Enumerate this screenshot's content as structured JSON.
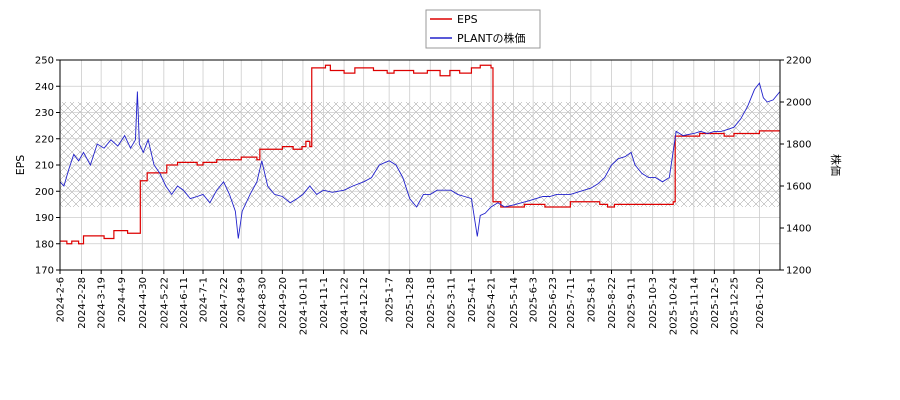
{
  "chart_data": {
    "type": "line",
    "legend": {
      "placement": "top-center",
      "entries": [
        "EPS",
        "PLANTの株価"
      ]
    },
    "colors": {
      "eps": "#dd0000",
      "price": "#2222cc"
    },
    "grid": true,
    "hatch_band": {
      "y2_range": [
        1500,
        2000
      ]
    },
    "y_left": {
      "label": "EPS",
      "range": [
        170,
        250
      ],
      "ticks": [
        "170",
        "180",
        "190",
        "200",
        "210",
        "220",
        "230",
        "240",
        "250"
      ]
    },
    "y_right": {
      "label": "株価",
      "range": [
        1200,
        2200
      ],
      "ticks": [
        "1200",
        "1400",
        "1600",
        "1800",
        "2000",
        "2200"
      ]
    },
    "x": {
      "range": [
        "2024-02-06",
        "2026-02-10"
      ],
      "ticks": [
        "2024-2-6",
        "2024-2-28",
        "2024-3-19",
        "2024-4-9",
        "2024-4-30",
        "2024-5-22",
        "2024-6-11",
        "2024-7-1",
        "2024-7-22",
        "2024-8-9",
        "2024-8-30",
        "2024-9-20",
        "2024-10-11",
        "2024-11-1",
        "2024-11-22",
        "2024-12-12",
        "2025-1-7",
        "2025-1-28",
        "2025-2-18",
        "2025-3-11",
        "2025-4-1",
        "2025-4-21",
        "2025-5-14",
        "2025-6-3",
        "2025-6-23",
        "2025-7-11",
        "2025-8-1",
        "2025-8-22",
        "2025-9-11",
        "2025-10-3",
        "2025-10-24",
        "2025-11-14",
        "2025-12-5",
        "2025-12-25",
        "2026-1-20"
      ]
    },
    "series": [
      {
        "name": "EPS",
        "axis": "left",
        "points": [
          [
            "2024-02-06",
            181
          ],
          [
            "2024-02-13",
            180
          ],
          [
            "2024-02-18",
            181
          ],
          [
            "2024-02-25",
            180
          ],
          [
            "2024-03-01",
            183
          ],
          [
            "2024-03-22",
            182
          ],
          [
            "2024-03-28",
            182
          ],
          [
            "2024-04-01",
            185
          ],
          [
            "2024-04-15",
            184
          ],
          [
            "2024-04-26",
            184
          ],
          [
            "2024-04-28",
            204
          ],
          [
            "2024-05-05",
            207
          ],
          [
            "2024-05-22",
            207
          ],
          [
            "2024-05-25",
            210
          ],
          [
            "2024-06-05",
            211
          ],
          [
            "2024-06-15",
            211
          ],
          [
            "2024-06-25",
            210
          ],
          [
            "2024-07-01",
            211
          ],
          [
            "2024-07-15",
            212
          ],
          [
            "2024-08-01",
            212
          ],
          [
            "2024-08-09",
            213
          ],
          [
            "2024-08-25",
            212
          ],
          [
            "2024-08-28",
            216
          ],
          [
            "2024-09-10",
            216
          ],
          [
            "2024-09-20",
            217
          ],
          [
            "2024-10-01",
            216
          ],
          [
            "2024-10-10",
            217
          ],
          [
            "2024-10-14",
            219
          ],
          [
            "2024-10-18",
            217
          ],
          [
            "2024-10-20",
            247
          ],
          [
            "2024-11-03",
            248
          ],
          [
            "2024-11-08",
            246
          ],
          [
            "2024-11-22",
            245
          ],
          [
            "2024-12-03",
            247
          ],
          [
            "2024-12-22",
            246
          ],
          [
            "2025-01-01",
            246
          ],
          [
            "2025-01-05",
            245
          ],
          [
            "2025-01-12",
            246
          ],
          [
            "2025-01-22",
            246
          ],
          [
            "2025-02-01",
            245
          ],
          [
            "2025-02-15",
            246
          ],
          [
            "2025-02-28",
            244
          ],
          [
            "2025-03-10",
            246
          ],
          [
            "2025-03-20",
            245
          ],
          [
            "2025-04-01",
            247
          ],
          [
            "2025-04-10",
            248
          ],
          [
            "2025-04-21",
            247
          ],
          [
            "2025-04-23",
            196
          ],
          [
            "2025-05-01",
            194
          ],
          [
            "2025-05-14",
            194
          ],
          [
            "2025-05-25",
            195
          ],
          [
            "2025-06-05",
            195
          ],
          [
            "2025-06-15",
            194
          ],
          [
            "2025-06-23",
            194
          ],
          [
            "2025-07-01",
            194
          ],
          [
            "2025-07-11",
            196
          ],
          [
            "2025-07-25",
            196
          ],
          [
            "2025-08-01",
            196
          ],
          [
            "2025-08-10",
            195
          ],
          [
            "2025-08-18",
            194
          ],
          [
            "2025-08-25",
            195
          ],
          [
            "2025-09-05",
            195
          ],
          [
            "2025-09-20",
            195
          ],
          [
            "2025-10-03",
            195
          ],
          [
            "2025-10-15",
            195
          ],
          [
            "2025-10-24",
            196
          ],
          [
            "2025-10-26",
            221
          ],
          [
            "2025-11-05",
            221
          ],
          [
            "2025-11-20",
            222
          ],
          [
            "2025-12-01",
            222
          ],
          [
            "2025-12-15",
            221
          ],
          [
            "2025-12-25",
            222
          ],
          [
            "2026-01-05",
            222
          ],
          [
            "2026-01-20",
            223
          ],
          [
            "2026-02-10",
            223
          ]
        ]
      },
      {
        "name": "PLANTの株価",
        "axis": "right",
        "points": [
          [
            "2024-02-06",
            1620
          ],
          [
            "2024-02-10",
            1600
          ],
          [
            "2024-02-15",
            1680
          ],
          [
            "2024-02-20",
            1750
          ],
          [
            "2024-02-25",
            1720
          ],
          [
            "2024-03-01",
            1760
          ],
          [
            "2024-03-08",
            1700
          ],
          [
            "2024-03-15",
            1800
          ],
          [
            "2024-03-22",
            1780
          ],
          [
            "2024-03-29",
            1820
          ],
          [
            "2024-04-05",
            1790
          ],
          [
            "2024-04-12",
            1840
          ],
          [
            "2024-04-18",
            1780
          ],
          [
            "2024-04-23",
            1820
          ],
          [
            "2024-04-25",
            2050
          ],
          [
            "2024-04-27",
            1800
          ],
          [
            "2024-05-01",
            1760
          ],
          [
            "2024-05-06",
            1820
          ],
          [
            "2024-05-12",
            1700
          ],
          [
            "2024-05-18",
            1660
          ],
          [
            "2024-05-24",
            1600
          ],
          [
            "2024-05-30",
            1560
          ],
          [
            "2024-06-05",
            1600
          ],
          [
            "2024-06-11",
            1580
          ],
          [
            "2024-06-18",
            1540
          ],
          [
            "2024-06-25",
            1550
          ],
          [
            "2024-07-01",
            1560
          ],
          [
            "2024-07-08",
            1520
          ],
          [
            "2024-07-15",
            1580
          ],
          [
            "2024-07-22",
            1620
          ],
          [
            "2024-07-28",
            1560
          ],
          [
            "2024-08-03",
            1480
          ],
          [
            "2024-08-06",
            1350
          ],
          [
            "2024-08-10",
            1480
          ],
          [
            "2024-08-18",
            1560
          ],
          [
            "2024-08-25",
            1620
          ],
          [
            "2024-08-30",
            1720
          ],
          [
            "2024-09-05",
            1600
          ],
          [
            "2024-09-12",
            1560
          ],
          [
            "2024-09-20",
            1550
          ],
          [
            "2024-09-28",
            1520
          ],
          [
            "2024-10-05",
            1540
          ],
          [
            "2024-10-11",
            1560
          ],
          [
            "2024-10-18",
            1600
          ],
          [
            "2024-10-25",
            1560
          ],
          [
            "2024-11-01",
            1580
          ],
          [
            "2024-11-10",
            1570
          ],
          [
            "2024-11-22",
            1580
          ],
          [
            "2024-12-01",
            1600
          ],
          [
            "2024-12-12",
            1620
          ],
          [
            "2024-12-20",
            1640
          ],
          [
            "2024-12-28",
            1700
          ],
          [
            "2025-01-07",
            1720
          ],
          [
            "2025-01-14",
            1700
          ],
          [
            "2025-01-21",
            1640
          ],
          [
            "2025-01-28",
            1540
          ],
          [
            "2025-02-04",
            1500
          ],
          [
            "2025-02-11",
            1560
          ],
          [
            "2025-02-18",
            1560
          ],
          [
            "2025-02-25",
            1580
          ],
          [
            "2025-03-04",
            1580
          ],
          [
            "2025-03-11",
            1580
          ],
          [
            "2025-03-18",
            1560
          ],
          [
            "2025-03-25",
            1550
          ],
          [
            "2025-04-01",
            1540
          ],
          [
            "2025-04-07",
            1360
          ],
          [
            "2025-04-10",
            1460
          ],
          [
            "2025-04-15",
            1470
          ],
          [
            "2025-04-21",
            1500
          ],
          [
            "2025-04-28",
            1520
          ],
          [
            "2025-05-05",
            1500
          ],
          [
            "2025-05-14",
            1510
          ],
          [
            "2025-05-22",
            1520
          ],
          [
            "2025-05-30",
            1530
          ],
          [
            "2025-06-06",
            1540
          ],
          [
            "2025-06-13",
            1550
          ],
          [
            "2025-06-20",
            1550
          ],
          [
            "2025-06-27",
            1560
          ],
          [
            "2025-07-04",
            1560
          ],
          [
            "2025-07-11",
            1560
          ],
          [
            "2025-07-18",
            1570
          ],
          [
            "2025-07-25",
            1580
          ],
          [
            "2025-08-01",
            1590
          ],
          [
            "2025-08-08",
            1610
          ],
          [
            "2025-08-15",
            1640
          ],
          [
            "2025-08-22",
            1700
          ],
          [
            "2025-08-29",
            1730
          ],
          [
            "2025-09-05",
            1740
          ],
          [
            "2025-09-11",
            1760
          ],
          [
            "2025-09-15",
            1700
          ],
          [
            "2025-09-22",
            1660
          ],
          [
            "2025-09-29",
            1640
          ],
          [
            "2025-10-06",
            1640
          ],
          [
            "2025-10-13",
            1620
          ],
          [
            "2025-10-20",
            1640
          ],
          [
            "2025-10-27",
            1860
          ],
          [
            "2025-11-03",
            1840
          ],
          [
            "2025-11-14",
            1850
          ],
          [
            "2025-11-21",
            1860
          ],
          [
            "2025-11-28",
            1850
          ],
          [
            "2025-12-05",
            1860
          ],
          [
            "2025-12-12",
            1860
          ],
          [
            "2025-12-19",
            1870
          ],
          [
            "2025-12-25",
            1880
          ],
          [
            "2026-01-01",
            1920
          ],
          [
            "2026-01-08",
            1980
          ],
          [
            "2026-01-15",
            2060
          ],
          [
            "2026-01-20",
            2090
          ],
          [
            "2026-01-24",
            2020
          ],
          [
            "2026-01-28",
            2000
          ],
          [
            "2026-02-03",
            2010
          ],
          [
            "2026-02-10",
            2050
          ]
        ]
      }
    ]
  }
}
